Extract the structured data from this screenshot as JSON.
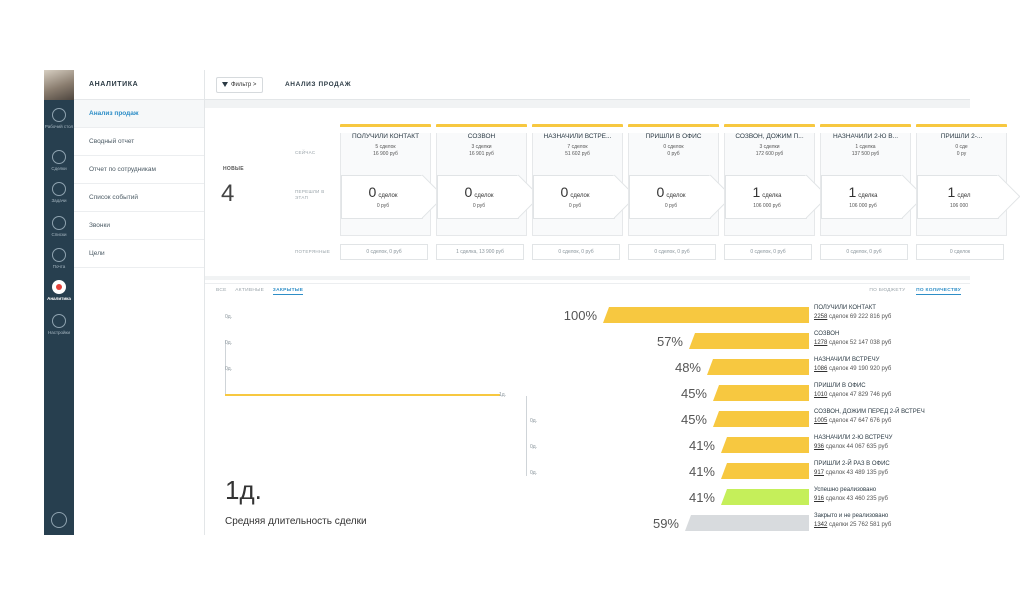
{
  "rail": {
    "items": [
      {
        "label": "Рабочий стол",
        "icon": "dashboard-icon"
      },
      {
        "label": "Сделки",
        "icon": "deals-icon"
      },
      {
        "label": "Задачи",
        "icon": "tasks-icon"
      },
      {
        "label": "Списки",
        "icon": "lists-icon"
      },
      {
        "label": "Почта",
        "icon": "mail-icon"
      },
      {
        "label": "Аналитика",
        "icon": "analytics-icon"
      },
      {
        "label": "Настройки",
        "icon": "settings-icon"
      }
    ]
  },
  "sidebar": {
    "title": "АНАЛИТИКА",
    "items": [
      {
        "label": "Анализ продаж"
      },
      {
        "label": "Сводный отчет"
      },
      {
        "label": "Отчет по сотрудникам"
      },
      {
        "label": "Список событий"
      },
      {
        "label": "Звонки"
      },
      {
        "label": "Цели"
      }
    ]
  },
  "header": {
    "filter_label": "Фильтр",
    "filter_chevron": ">",
    "title": "АНАЛИЗ ПРОДАЖ"
  },
  "pipeline": {
    "new_label": "НОВЫЕ",
    "new_value": "4",
    "row_labels": {
      "now": "СЕЙЧАС",
      "moved": "ПЕРЕШЛИ В ЭТАП",
      "lost": "ПОТЕРЯННЫЕ"
    },
    "stages": [
      {
        "name": "ПОЛУЧИЛИ КОНТАКТ",
        "count": "5 сделок",
        "sum": "16 900 руб",
        "moved_num": "0",
        "moved_unit": "сделок",
        "moved_sum": "0 руб",
        "lost": "0 сделок, 0 руб"
      },
      {
        "name": "СОЗВОН",
        "count": "3 сделки",
        "sum": "16 901 руб",
        "moved_num": "0",
        "moved_unit": "сделок",
        "moved_sum": "0 руб",
        "lost": "1 сделка, 13 900 руб"
      },
      {
        "name": "НАЗНАЧИЛИ ВСТРЕ...",
        "count": "7 сделок",
        "sum": "51 602 руб",
        "moved_num": "0",
        "moved_unit": "сделок",
        "moved_sum": "0 руб",
        "lost": "0 сделок, 0 руб"
      },
      {
        "name": "ПРИШЛИ В ОФИС",
        "count": "0 сделок",
        "sum": "0 руб",
        "moved_num": "0",
        "moved_unit": "сделок",
        "moved_sum": "0 руб",
        "lost": "0 сделок, 0 руб"
      },
      {
        "name": "СОЗВОН, ДОЖИМ П...",
        "count": "3 сделки",
        "sum": "172 600 руб",
        "moved_num": "1",
        "moved_unit": "сделка",
        "moved_sum": "106 000 руб",
        "lost": "0 сделок, 0 руб"
      },
      {
        "name": "НАЗНАЧИЛИ 2-Ю В...",
        "count": "1 сделка",
        "sum": "137 500 руб",
        "moved_num": "1",
        "moved_unit": "сделка",
        "moved_sum": "106 000 руб",
        "lost": "0 сделок, 0 руб"
      },
      {
        "name": "ПРИШЛИ 2-...",
        "count": "0 сде",
        "sum": "0 ру",
        "moved_num": "1",
        "moved_unit": "сдел",
        "moved_sum": "106 000",
        "lost": "0 сделок"
      }
    ]
  },
  "funnel": {
    "tabs": [
      {
        "label": "ВСЕ"
      },
      {
        "label": "АКТИВНЫЕ"
      },
      {
        "label": "ЗАКРЫТЫЕ"
      }
    ],
    "active_tab": "ЗАКРЫТЫЕ",
    "modes": [
      {
        "label": "ПО БЮДЖЕТУ"
      },
      {
        "label": "ПО КОЛИЧЕСТВУ"
      }
    ],
    "active_mode": "ПО КОЛИЧЕСТВУ",
    "rows": [
      {
        "pct": "100%",
        "fraction": 1.0,
        "duration": "0д.",
        "name": "ПОЛУЧИЛИ КОНТАКТ",
        "count": "2258",
        "rest": " сделок 69 222 816 руб",
        "color": "#f7c840"
      },
      {
        "pct": "57%",
        "fraction": 0.57,
        "duration": "0д.",
        "name": "СОЗВОН",
        "count": "1278",
        "rest": " сделок 52 147 038 руб",
        "color": "#f7c840"
      },
      {
        "pct": "48%",
        "fraction": 0.48,
        "duration": "0д.",
        "name": "НАЗНАЧИЛИ ВСТРЕЧУ",
        "count": "1086",
        "rest": " сделок 49 190 920 руб",
        "color": "#f7c840"
      },
      {
        "pct": "45%",
        "fraction": 0.45,
        "duration": "1д.",
        "name": "ПРИШЛИ В ОФИС",
        "count": "1010",
        "rest": " сделок 47 829 746 руб",
        "color": "#f7c840"
      },
      {
        "pct": "45%",
        "fraction": 0.45,
        "duration": "0д.",
        "name": "СОЗВОН, ДОЖИМ ПЕРЕД 2-Й ВСТРЕЧ",
        "count": "1005",
        "rest": " сделок 47 647 676 руб",
        "color": "#f7c840"
      },
      {
        "pct": "41%",
        "fraction": 0.41,
        "duration": "0д.",
        "name": "НАЗНАЧИЛИ 2-Ю ВСТРЕЧУ",
        "count": "936",
        "rest": " сделок 44 067 635 руб",
        "color": "#f7c840"
      },
      {
        "pct": "41%",
        "fraction": 0.41,
        "duration": "0д.",
        "name": "ПРИШЛИ 2-Й РАЗ В ОФИС",
        "count": "917",
        "rest": " сделок 43 489 135 руб",
        "color": "#f7c840"
      },
      {
        "pct": "41%",
        "fraction": 0.41,
        "duration": "",
        "name": "Успешно реализовано",
        "count": "916",
        "rest": " сделок 43 460 235 руб",
        "color": "#c5ef5a"
      },
      {
        "pct": "59%",
        "fraction": 0.59,
        "duration": "",
        "name": "Закрыто и не реализовано",
        "count": "1342",
        "rest": " сделки 25 762 581 руб",
        "color": "#d8dbde"
      }
    ],
    "avg_value": "1д.",
    "avg_label": "Средняя длительность сделки"
  }
}
